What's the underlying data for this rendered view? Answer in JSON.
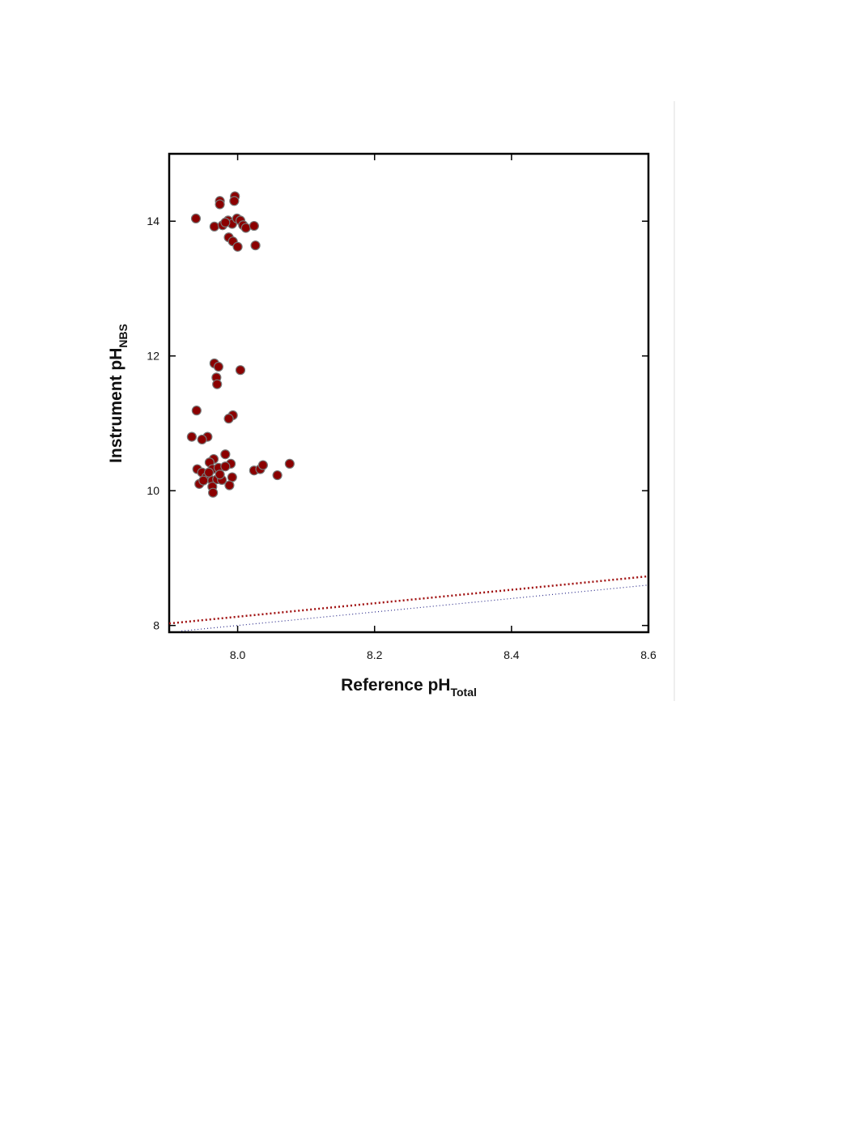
{
  "chart_data": {
    "type": "scatter",
    "xlabel": {
      "text": "Reference pH",
      "subscript": "Total"
    },
    "ylabel": {
      "text": "Instrument pH",
      "subscript": "NBS"
    },
    "xlim": [
      7.9,
      8.6
    ],
    "ylim": [
      7.9,
      15
    ],
    "xticks": [
      {
        "value": 8,
        "label": "8.0"
      },
      8.2,
      8.4,
      8.6
    ],
    "yticks": [
      8,
      10,
      12,
      14
    ],
    "series": [
      {
        "color": "#8b0000",
        "x": [
          7.939,
          7.974,
          7.974,
          7.996,
          7.995,
          7.966,
          7.978,
          7.986,
          7.992,
          7.999,
          8.004,
          8.008,
          8.012,
          8.024,
          7.987,
          7.993,
          8.0,
          8.026,
          7.982,
          7.966,
          7.972,
          8.004,
          7.969,
          7.97,
          7.94,
          7.993,
          7.987,
          7.933,
          7.956,
          7.948,
          7.982,
          7.99,
          7.965,
          7.959,
          7.941,
          7.948,
          7.963,
          7.972,
          7.982,
          7.954,
          7.944,
          7.95,
          7.963,
          7.97,
          7.977,
          7.963,
          7.964,
          7.992,
          7.988,
          8.024,
          8.033,
          8.037,
          8.058,
          8.076,
          7.958,
          7.974
        ],
        "values": [
          14.04,
          14.3,
          14.25,
          14.37,
          14.3,
          13.92,
          13.94,
          14.01,
          13.96,
          14.04,
          14.01,
          13.94,
          13.9,
          13.93,
          13.76,
          13.7,
          13.62,
          13.64,
          13.98,
          11.89,
          11.84,
          11.79,
          11.68,
          11.58,
          11.19,
          11.12,
          11.07,
          10.8,
          10.8,
          10.76,
          10.54,
          10.4,
          10.47,
          10.42,
          10.32,
          10.27,
          10.32,
          10.34,
          10.36,
          10.2,
          10.1,
          10.15,
          10.15,
          10.17,
          10.16,
          10.06,
          9.97,
          10.2,
          10.08,
          10.3,
          10.32,
          10.38,
          10.23,
          10.4,
          10.27,
          10.24
        ]
      }
    ],
    "lines": [
      {
        "color": "#a01010",
        "x": [
          7.9,
          8.6
        ],
        "values": [
          8.03,
          8.73
        ]
      },
      {
        "color": "#2a2a8a",
        "x": [
          7.918,
          8.6
        ],
        "values": [
          7.918,
          8.6
        ]
      }
    ]
  }
}
